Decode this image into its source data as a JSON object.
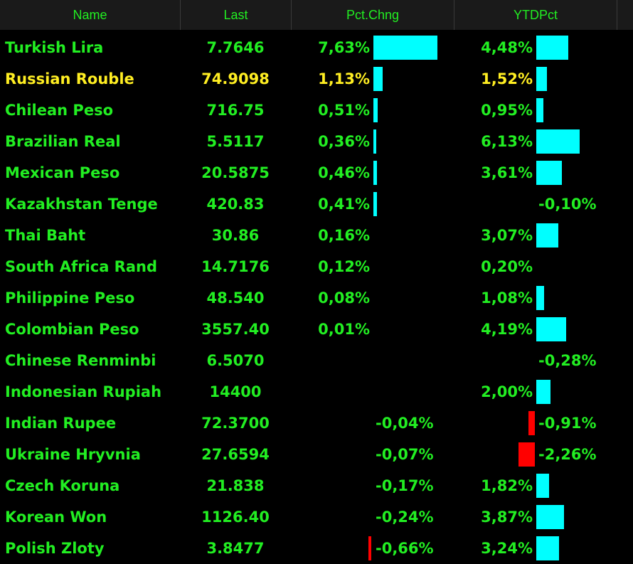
{
  "headers": [
    "Name",
    "Last",
    "Pct.Chng",
    "YTDPct"
  ],
  "colors": {
    "text_green": "#22ee22",
    "text_yellow": "#ffee22",
    "bar_positive": "#00ffff",
    "bar_negative": "#ff0000",
    "header_bg": "#1a1a1a"
  },
  "rows": [
    {
      "name": "Turkish Lira",
      "last": "7.7646",
      "pct": "7,63%",
      "pct_value": 7.63,
      "ytd": "4,48%",
      "ytd_value": 4.48,
      "highlight": false
    },
    {
      "name": "Russian Rouble",
      "last": "74.9098",
      "pct": "1,13%",
      "pct_value": 1.13,
      "ytd": "1,52%",
      "ytd_value": 1.52,
      "highlight": true
    },
    {
      "name": "Chilean Peso",
      "last": "716.75",
      "pct": "0,51%",
      "pct_value": 0.51,
      "ytd": "0,95%",
      "ytd_value": 0.95,
      "highlight": false
    },
    {
      "name": "Brazilian Real",
      "last": "5.5117",
      "pct": "0,36%",
      "pct_value": 0.36,
      "ytd": "6,13%",
      "ytd_value": 6.13,
      "highlight": false
    },
    {
      "name": "Mexican Peso",
      "last": "20.5875",
      "pct": "0,46%",
      "pct_value": 0.46,
      "ytd": "3,61%",
      "ytd_value": 3.61,
      "highlight": false
    },
    {
      "name": "Kazakhstan Tenge",
      "last": "420.83",
      "pct": "0,41%",
      "pct_value": 0.41,
      "ytd": "-0,10%",
      "ytd_value": -0.1,
      "highlight": false
    },
    {
      "name": "Thai Baht",
      "last": "30.86",
      "pct": "0,16%",
      "pct_value": 0.16,
      "ytd": "3,07%",
      "ytd_value": 3.07,
      "highlight": false
    },
    {
      "name": "South Africa Rand",
      "last": "14.7176",
      "pct": "0,12%",
      "pct_value": 0.12,
      "ytd": "0,20%",
      "ytd_value": 0.2,
      "highlight": false
    },
    {
      "name": "Philippine Peso",
      "last": "48.540",
      "pct": "0,08%",
      "pct_value": 0.08,
      "ytd": "1,08%",
      "ytd_value": 1.08,
      "highlight": false
    },
    {
      "name": "Colombian Peso",
      "last": "3557.40",
      "pct": "0,01%",
      "pct_value": 0.01,
      "ytd": "4,19%",
      "ytd_value": 4.19,
      "highlight": false
    },
    {
      "name": "Chinese Renminbi",
      "last": "6.5070",
      "pct": "",
      "pct_value": 0,
      "ytd": "-0,28%",
      "ytd_value": -0.28,
      "highlight": false
    },
    {
      "name": "Indonesian Rupiah",
      "last": "14400",
      "pct": "",
      "pct_value": 0,
      "ytd": "2,00%",
      "ytd_value": 2.0,
      "highlight": false
    },
    {
      "name": "Indian Rupee",
      "last": "72.3700",
      "pct": "-0,04%",
      "pct_value": -0.04,
      "ytd": "-0,91%",
      "ytd_value": -0.91,
      "highlight": false
    },
    {
      "name": "Ukraine Hryvnia",
      "last": "27.6594",
      "pct": "-0,07%",
      "pct_value": -0.07,
      "ytd": "-2,26%",
      "ytd_value": -2.26,
      "highlight": false
    },
    {
      "name": "Czech Koruna",
      "last": "21.838",
      "pct": "-0,17%",
      "pct_value": -0.17,
      "ytd": "1,82%",
      "ytd_value": 1.82,
      "highlight": false
    },
    {
      "name": "Korean Won",
      "last": "1126.40",
      "pct": "-0,24%",
      "pct_value": -0.24,
      "ytd": "3,87%",
      "ytd_value": 3.87,
      "highlight": false
    },
    {
      "name": "Polish Zloty",
      "last": "3.8477",
      "pct": "-0,66%",
      "pct_value": -0.66,
      "ytd": "3,24%",
      "ytd_value": 3.24,
      "highlight": false
    }
  ]
}
